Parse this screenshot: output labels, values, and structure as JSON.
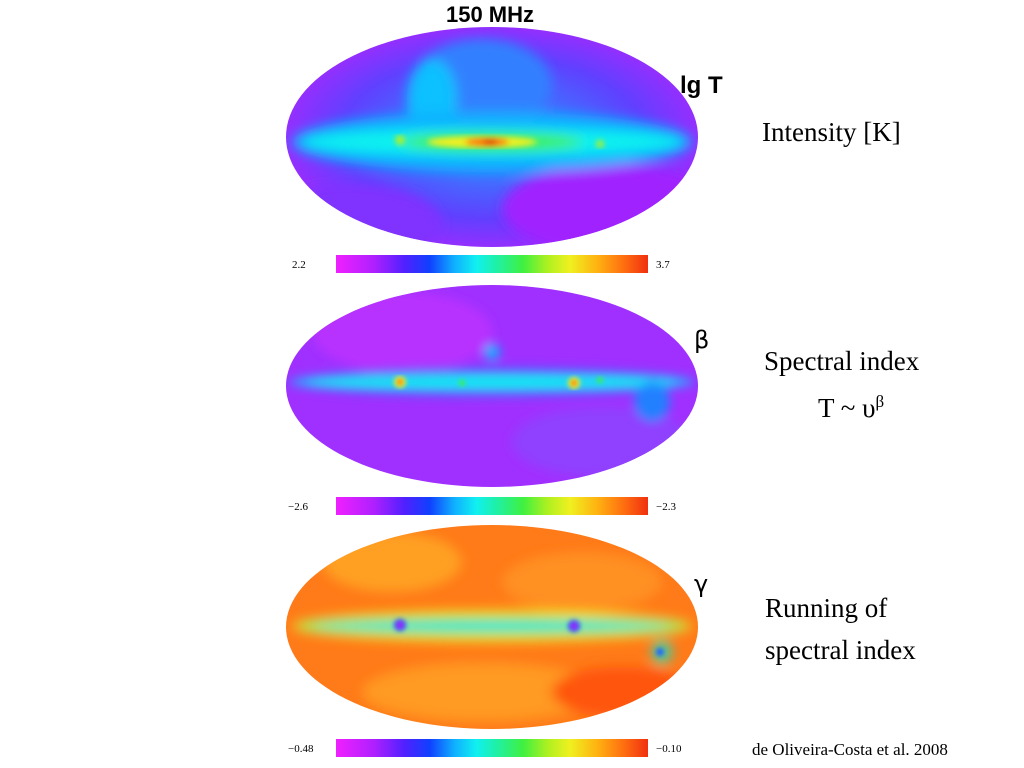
{
  "frequency_title": "150 MHz",
  "panels": [
    {
      "symbol": "lg T",
      "description_lines": [
        "Intensity [K]"
      ],
      "colorbar": {
        "min": "2.2",
        "max": "3.7"
      }
    },
    {
      "symbol": "β",
      "description_lines": [
        "Spectral index",
        "T ~ υ",
        "β"
      ],
      "colorbar": {
        "min": "−2.6",
        "max": "−2.3"
      }
    },
    {
      "symbol": "γ",
      "description_lines": [
        "Running of",
        "spectral index"
      ],
      "colorbar": {
        "min": "−0.48",
        "max": "−0.10"
      }
    }
  ],
  "credit": "de Oliveira-Costa et al. 2008",
  "colors": {
    "low": "#f020ff",
    "mid": "#10f0f0",
    "high": "#f03010",
    "background": "#ffffff"
  }
}
